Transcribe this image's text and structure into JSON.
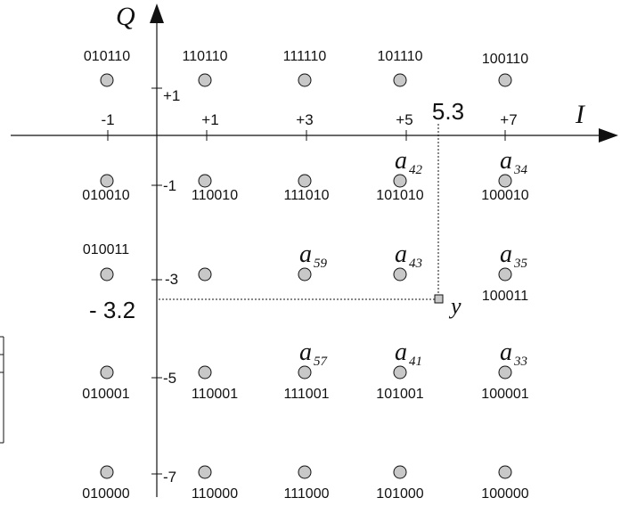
{
  "axes": {
    "i_label": "I",
    "q_label": "Q",
    "i_ticks": [
      "-1",
      "+1",
      "+3",
      "+5",
      "+7"
    ],
    "q_ticks": [
      "+1",
      "-1",
      "-3",
      "-5",
      "-7"
    ]
  },
  "received_point": {
    "label": "y",
    "i_value": "5.3",
    "q_value": "- 3.2"
  },
  "constellation": [
    {
      "code": "010110",
      "alias": ""
    },
    {
      "code": "110110",
      "alias": ""
    },
    {
      "code": "111110",
      "alias": ""
    },
    {
      "code": "101110",
      "alias": ""
    },
    {
      "code": "100110",
      "alias": ""
    },
    {
      "code": "010010",
      "alias": ""
    },
    {
      "code": "110010",
      "alias": ""
    },
    {
      "code": "111010",
      "alias": ""
    },
    {
      "code": "101010",
      "alias": "42"
    },
    {
      "code": "100010",
      "alias": "34"
    },
    {
      "code": "010011",
      "alias": ""
    },
    {
      "code": "",
      "alias": ""
    },
    {
      "code": "",
      "alias": "59"
    },
    {
      "code": "",
      "alias": "43"
    },
    {
      "code": "100011",
      "alias": "35"
    },
    {
      "code": "010001",
      "alias": ""
    },
    {
      "code": "110001",
      "alias": ""
    },
    {
      "code": "111001",
      "alias": "57"
    },
    {
      "code": "101001",
      "alias": "41"
    },
    {
      "code": "100001",
      "alias": "33"
    },
    {
      "code": "010000",
      "alias": ""
    },
    {
      "code": "110000",
      "alias": ""
    },
    {
      "code": "111000",
      "alias": ""
    },
    {
      "code": "101000",
      "alias": ""
    },
    {
      "code": "100000",
      "alias": ""
    }
  ],
  "alias_letter": "a",
  "colors": {
    "point_fill": "#c8c8c8",
    "line": "#111111"
  }
}
